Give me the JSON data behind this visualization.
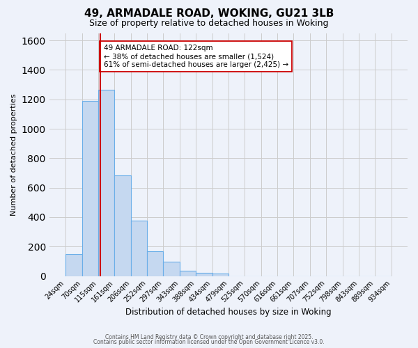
{
  "title": "49, ARMADALE ROAD, WOKING, GU21 3LB",
  "subtitle": "Size of property relative to detached houses in Woking",
  "xlabel": "Distribution of detached houses by size in Woking",
  "ylabel": "Number of detached properties",
  "bar_values": [
    148,
    1190,
    1265,
    685,
    375,
    170,
    95,
    35,
    20,
    15,
    0,
    0,
    0,
    0,
    0,
    0,
    0,
    0,
    0,
    0
  ],
  "bin_labels": [
    "24sqm",
    "70sqm",
    "115sqm",
    "161sqm",
    "206sqm",
    "252sqm",
    "297sqm",
    "343sqm",
    "388sqm",
    "434sqm",
    "479sqm",
    "525sqm",
    "570sqm",
    "616sqm",
    "661sqm",
    "707sqm",
    "752sqm",
    "798sqm",
    "843sqm",
    "889sqm",
    "934sqm"
  ],
  "bin_edges": [
    24,
    70,
    115,
    161,
    206,
    252,
    297,
    343,
    388,
    434,
    479,
    525,
    570,
    616,
    661,
    707,
    752,
    798,
    843,
    889,
    934
  ],
  "bar_color": "#c5d8f0",
  "bar_edge_color": "#6aaee8",
  "property_line_x": 122,
  "property_line_color": "#cc0000",
  "ylim": [
    0,
    1650
  ],
  "yticks": [
    0,
    200,
    400,
    600,
    800,
    1000,
    1200,
    1400,
    1600
  ],
  "annotation_title": "49 ARMADALE ROAD: 122sqm",
  "annotation_line1": "← 38% of detached houses are smaller (1,524)",
  "annotation_line2": "61% of semi-detached houses are larger (2,425) →",
  "annotation_box_color": "#ffffff",
  "annotation_box_edge": "#cc0000",
  "grid_color": "#cccccc",
  "background_color": "#eef2fa",
  "footer1": "Contains HM Land Registry data © Crown copyright and database right 2025.",
  "footer2": "Contains public sector information licensed under the Open Government Licence v3.0."
}
